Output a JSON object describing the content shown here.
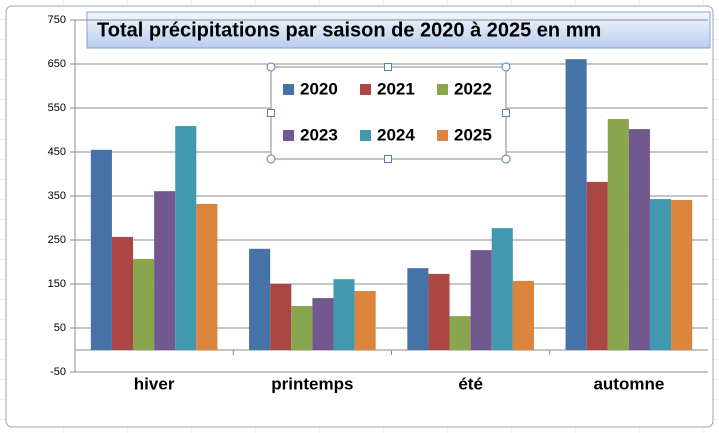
{
  "chart_data": {
    "type": "bar",
    "title": "Total précipitations par saison de 2020 à 2025 en mm",
    "categories": [
      "hiver",
      "printemps",
      "été",
      "automne"
    ],
    "series": [
      {
        "name": "2020",
        "color": "#4572a7",
        "values": [
          455,
          230,
          186,
          661
        ]
      },
      {
        "name": "2021",
        "color": "#aa4643",
        "values": [
          257,
          150,
          173,
          382
        ]
      },
      {
        "name": "2022",
        "color": "#89a54e",
        "values": [
          207,
          100,
          77,
          525
        ]
      },
      {
        "name": "2023",
        "color": "#71588f",
        "values": [
          361,
          118,
          227,
          502
        ]
      },
      {
        "name": "2024",
        "color": "#4198af",
        "values": [
          509,
          161,
          277,
          343
        ]
      },
      {
        "name": "2025",
        "color": "#db843d",
        "values": [
          332,
          134,
          157,
          341
        ]
      }
    ],
    "ylim": [
      -50,
      750
    ],
    "yticks": [
      -50,
      50,
      150,
      250,
      350,
      450,
      550,
      650,
      750
    ],
    "grid": true
  }
}
